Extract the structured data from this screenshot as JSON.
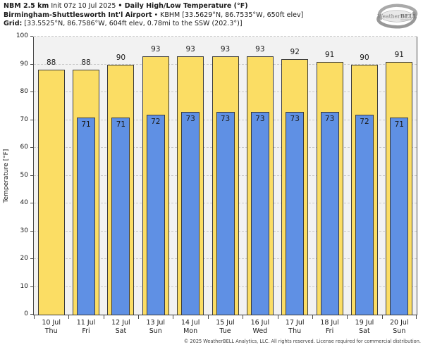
{
  "header": {
    "model": "NBM 2.5 km",
    "init": " Init 07z 10 Jul 2025 ",
    "product": "• Daily High/Low Temperature (°F)",
    "station_name": "Birmingham-Shuttlesworth Int'l Airport",
    "station_sep": " • ",
    "station_meta": "KBHM [33.5629°N, 86.7535°W, 650ft elev]",
    "grid_label": "Grid:",
    "grid_meta": " [33.5525°N, 86.7586°W, 604ft elev, 0.78mi to the SSW (202.3°)]"
  },
  "logo": {
    "text": "WeatherBELL"
  },
  "chart_data": {
    "type": "bar",
    "title": "NBM 2.5 km Init 07z 10 Jul 2025 • Daily High/Low Temperature (°F)",
    "ylabel": "Temperature [°F]",
    "ylim": [
      0,
      100
    ],
    "ytick_step": 10,
    "grid": "horizontal-dashed",
    "legend": "none",
    "categories": [
      {
        "date": "10 Jul",
        "day": "Thu"
      },
      {
        "date": "11 Jul",
        "day": "Fri"
      },
      {
        "date": "12 Jul",
        "day": "Sat"
      },
      {
        "date": "13 Jul",
        "day": "Sun"
      },
      {
        "date": "14 Jul",
        "day": "Mon"
      },
      {
        "date": "15 Jul",
        "day": "Tue"
      },
      {
        "date": "16 Jul",
        "day": "Wed"
      },
      {
        "date": "17 Jul",
        "day": "Thu"
      },
      {
        "date": "18 Jul",
        "day": "Fri"
      },
      {
        "date": "19 Jul",
        "day": "Sat"
      },
      {
        "date": "20 Jul",
        "day": "Sun"
      }
    ],
    "series": [
      {
        "name": "Daily High",
        "color": "#fbdd64",
        "values": [
          88,
          88,
          90,
          93,
          93,
          93,
          93,
          92,
          91,
          90,
          91
        ]
      },
      {
        "name": "Daily Low",
        "color": "#5f90e4",
        "values": [
          null,
          71,
          71,
          72,
          73,
          73,
          73,
          73,
          73,
          72,
          71
        ]
      }
    ]
  },
  "colors": {
    "high_bar": "#fbdd64",
    "low_bar": "#5f90e4",
    "bar_border": "#3c3c3c",
    "plot_background": "#f2f2f2",
    "gridline": "#c9c9c9",
    "axis_spine": "#4a4a4a",
    "text": "#1a1a1a",
    "logo_gray": "#8f8f8f"
  },
  "footer": {
    "copyright": "© 2025 WeatherBELL Analytics, LLC. All rights reserved. License required for commercial distribution."
  }
}
